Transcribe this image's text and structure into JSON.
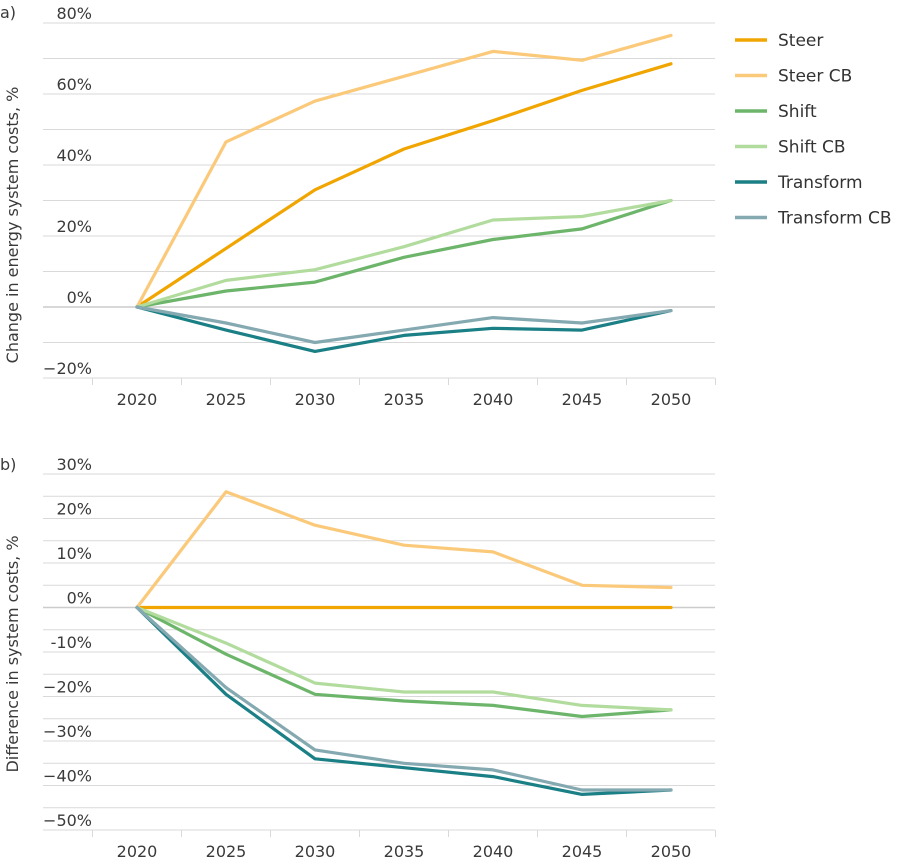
{
  "chart_data": [
    {
      "type": "line",
      "panel_label": "a)",
      "ylabel": "Change in energy system costs, %",
      "categories": [
        "2020",
        "2025",
        "2030",
        "2035",
        "2040",
        "2045",
        "2050"
      ],
      "yticks": [
        -20,
        0,
        20,
        40,
        60,
        80
      ],
      "ytick_labels": [
        "−20%",
        "0%",
        "20%",
        "40%",
        "60%",
        "80%"
      ],
      "ylim": [
        -20,
        80
      ],
      "grid": true,
      "series": [
        {
          "name": "Steer",
          "color": "#f0a500",
          "values": [
            0,
            16.5,
            33,
            44.5,
            52.5,
            61,
            68.5
          ]
        },
        {
          "name": "Steer CB",
          "color": "#fbc97a",
          "values": [
            0,
            46.5,
            58,
            65,
            72,
            69.5,
            76.5
          ]
        },
        {
          "name": "Shift",
          "color": "#6db56a",
          "values": [
            0,
            4.5,
            7,
            14,
            19,
            22,
            30
          ]
        },
        {
          "name": "Shift CB",
          "color": "#b2dc9e",
          "values": [
            0,
            7.5,
            10.5,
            17,
            24.5,
            25.5,
            30
          ]
        },
        {
          "name": "Transform",
          "color": "#1b7f86",
          "values": [
            0,
            -6.5,
            -12.5,
            -8,
            -6,
            -6.5,
            -1
          ]
        },
        {
          "name": "Transform CB",
          "color": "#85a9b1",
          "values": [
            0,
            -4.5,
            -10,
            -6.5,
            -3,
            -4.5,
            -1
          ]
        }
      ]
    },
    {
      "type": "line",
      "panel_label": "b)",
      "ylabel": "Difference in system costs, %",
      "categories": [
        "2020",
        "2025",
        "2030",
        "2035",
        "2040",
        "2045",
        "2050"
      ],
      "yticks": [
        -50,
        -40,
        -30,
        -20,
        -10,
        0,
        10,
        20,
        30
      ],
      "ytick_labels": [
        "−50%",
        "−40%",
        "−30%",
        "−20%",
        "-10%",
        "0%",
        "10%",
        "20%",
        "30%"
      ],
      "ylim": [
        -50,
        30
      ],
      "grid": true,
      "series": [
        {
          "name": "Steer",
          "color": "#f0a500",
          "values": [
            0,
            0,
            0,
            0,
            0,
            0,
            0
          ]
        },
        {
          "name": "Steer CB",
          "color": "#fbc97a",
          "values": [
            0,
            26,
            18.5,
            14,
            12.5,
            5,
            4.5
          ]
        },
        {
          "name": "Shift",
          "color": "#6db56a",
          "values": [
            0,
            -10.5,
            -19.5,
            -21,
            -22,
            -24.5,
            -23
          ]
        },
        {
          "name": "Shift CB",
          "color": "#b2dc9e",
          "values": [
            0,
            -8,
            -17,
            -19,
            -19,
            -22,
            -23
          ]
        },
        {
          "name": "Transform",
          "color": "#1b7f86",
          "values": [
            0,
            -19.5,
            -34,
            -36,
            -38,
            -42,
            -41
          ]
        },
        {
          "name": "Transform CB",
          "color": "#85a9b1",
          "values": [
            0,
            -18,
            -32,
            -35,
            -36.5,
            -41,
            -41
          ]
        }
      ]
    }
  ],
  "legend": {
    "position": "top-right",
    "items": [
      {
        "label": "Steer",
        "color": "#f0a500"
      },
      {
        "label": "Steer CB",
        "color": "#fbc97a"
      },
      {
        "label": "Shift",
        "color": "#6db56a"
      },
      {
        "label": "Shift CB",
        "color": "#b2dc9e"
      },
      {
        "label": "Transform",
        "color": "#1b7f86"
      },
      {
        "label": "Transform CB",
        "color": "#85a9b1"
      }
    ]
  }
}
